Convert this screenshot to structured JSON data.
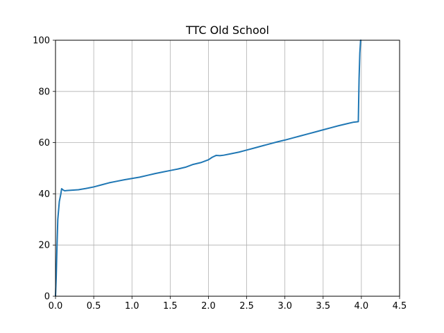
{
  "chart_data": {
    "type": "line",
    "title": "TTC Old School",
    "xlabel": "",
    "ylabel": "",
    "xlim": [
      0,
      4.5
    ],
    "ylim": [
      0,
      100
    ],
    "xticks": [
      0.0,
      0.5,
      1.0,
      1.5,
      2.0,
      2.5,
      3.0,
      3.5,
      4.0,
      4.5
    ],
    "xtick_labels": [
      "0.0",
      "0.5",
      "1.0",
      "1.5",
      "2.0",
      "2.5",
      "3.0",
      "3.5",
      "4.0",
      "4.5"
    ],
    "yticks": [
      0,
      20,
      40,
      60,
      80,
      100
    ],
    "ytick_labels": [
      "0",
      "20",
      "40",
      "60",
      "80",
      "100"
    ],
    "grid": true,
    "line_color": "#1f77b4",
    "series": [
      {
        "x": [
          0.0,
          0.01,
          0.02,
          0.03,
          0.05,
          0.07,
          0.08,
          0.1,
          0.12,
          0.15,
          0.2,
          0.3,
          0.4,
          0.5,
          0.6,
          0.7,
          0.8,
          0.9,
          1.0,
          1.1,
          1.2,
          1.3,
          1.4,
          1.5,
          1.6,
          1.7,
          1.8,
          1.9,
          2.0,
          2.05,
          2.1,
          2.15,
          2.2,
          2.3,
          2.4,
          2.5,
          2.6,
          2.7,
          2.8,
          2.9,
          3.0,
          3.1,
          3.2,
          3.3,
          3.4,
          3.5,
          3.6,
          3.7,
          3.8,
          3.9,
          3.96,
          3.97,
          3.98,
          3.99,
          4.0
        ],
        "y": [
          0,
          8,
          20,
          30,
          37,
          40,
          42,
          41.5,
          41.2,
          41.3,
          41.4,
          41.6,
          42.1,
          42.7,
          43.5,
          44.3,
          44.9,
          45.5,
          46.0,
          46.5,
          47.2,
          47.9,
          48.5,
          49.1,
          49.7,
          50.4,
          51.5,
          52.2,
          53.3,
          54.3,
          55.0,
          54.9,
          55.1,
          55.7,
          56.3,
          57.1,
          57.9,
          58.7,
          59.5,
          60.3,
          61.0,
          61.8,
          62.6,
          63.4,
          64.2,
          65.0,
          65.8,
          66.6,
          67.3,
          68.0,
          68.2,
          85,
          95,
          100,
          100
        ]
      }
    ]
  }
}
